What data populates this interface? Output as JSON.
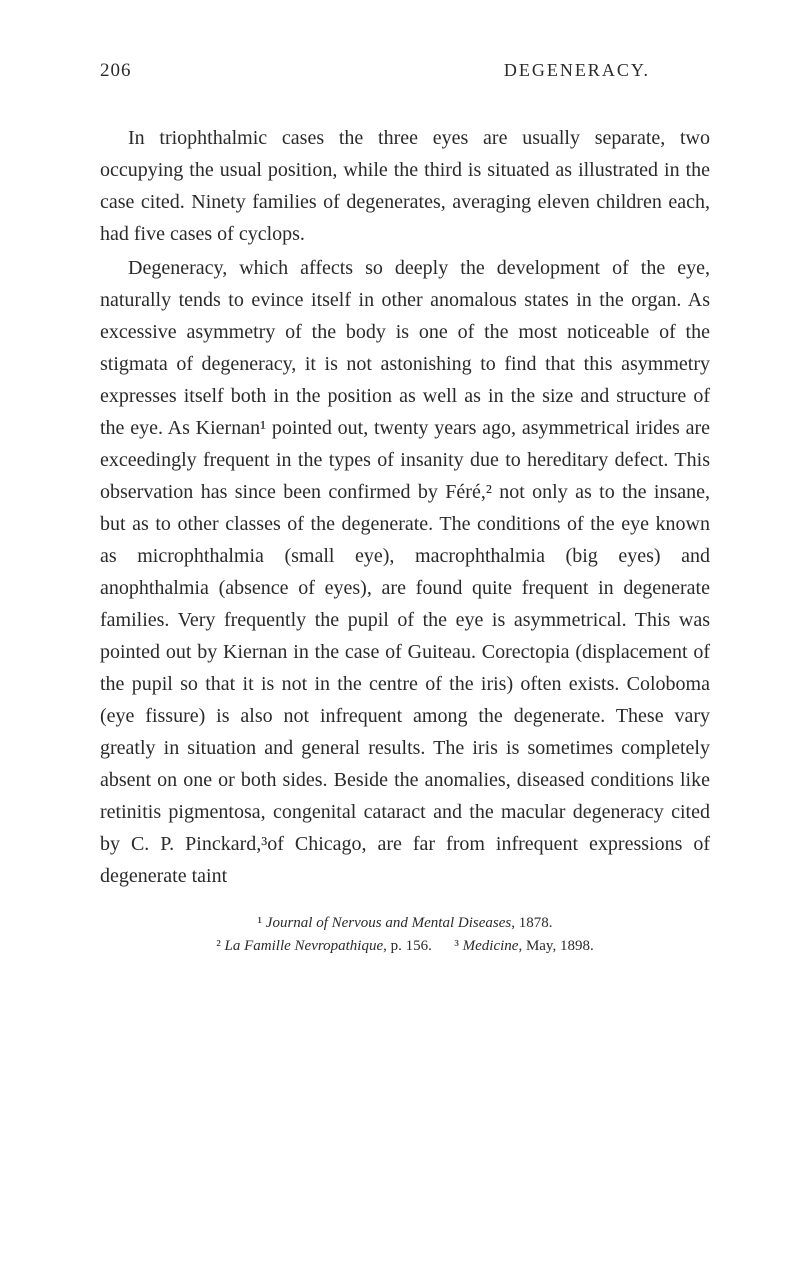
{
  "header": {
    "pageNumber": "206",
    "title": "DEGENERACY."
  },
  "paragraphs": {
    "p1": "In triophthalmic cases the three eyes are usually separate, two occupying the usual position, while the third is situated as illustrated in the case cited. Ninety families of degenerates, averaging eleven children each, had five cases of cyclops.",
    "p2": "Degeneracy, which affects so deeply the development of the eye, naturally tends to evince itself in other anomalous states in the organ. As excessive asymmetry of the body is one of the most noticeable of the stigmata of degeneracy, it is not astonishing to find that this asymmetry expresses itself both in the position as well as in the size and structure of the eye. As Kiernan¹ pointed out, twenty years ago, asymmetrical irides are exceedingly frequent in the types of insanity due to hereditary defect. This observation has since been confirmed by Féré,² not only as to the insane, but as to other classes of the degenerate. The conditions of the eye known as microphthalmia (small eye), macrophthalmia (big eyes) and anophthalmia (absence of eyes), are found quite frequent in degenerate families. Very frequently the pupil of the eye is asymmetrical. This was pointed out by Kiernan in the case of Guiteau. Corectopia (displacement of the pupil so that it is not in the centre of the iris) often exists. Coloboma (eye fissure) is also not infrequent among the degenerate. These vary greatly in situation and general results. The iris is sometimes completely absent on one or both sides. Beside the anomalies, diseased conditions like retinitis pigmentosa, congenital cataract and the macular degeneracy cited by C. P. Pinckard,³of Chicago, are far from infrequent expressions of degenerate taint"
  },
  "footnotes": {
    "fn1_marker": "¹ ",
    "fn1_italic": "Journal of Nervous and Mental Diseases",
    "fn1_normal": ", 1878.",
    "fn2_marker": "² ",
    "fn2_italic": "La Famille Nevropathique",
    "fn2_normal": ", p. 156.",
    "fn3_marker": "³ ",
    "fn3_italic": "Medicine",
    "fn3_normal": ", May, 1898."
  },
  "styling": {
    "backgroundColor": "#ffffff",
    "textColor": "#2a2a2a",
    "bodyFontSize": 20,
    "headerFontSize": 18,
    "footnoteFontSize": 15,
    "lineHeight": 1.6,
    "textIndent": 28,
    "fontFamily": "Georgia, Times New Roman, serif"
  }
}
